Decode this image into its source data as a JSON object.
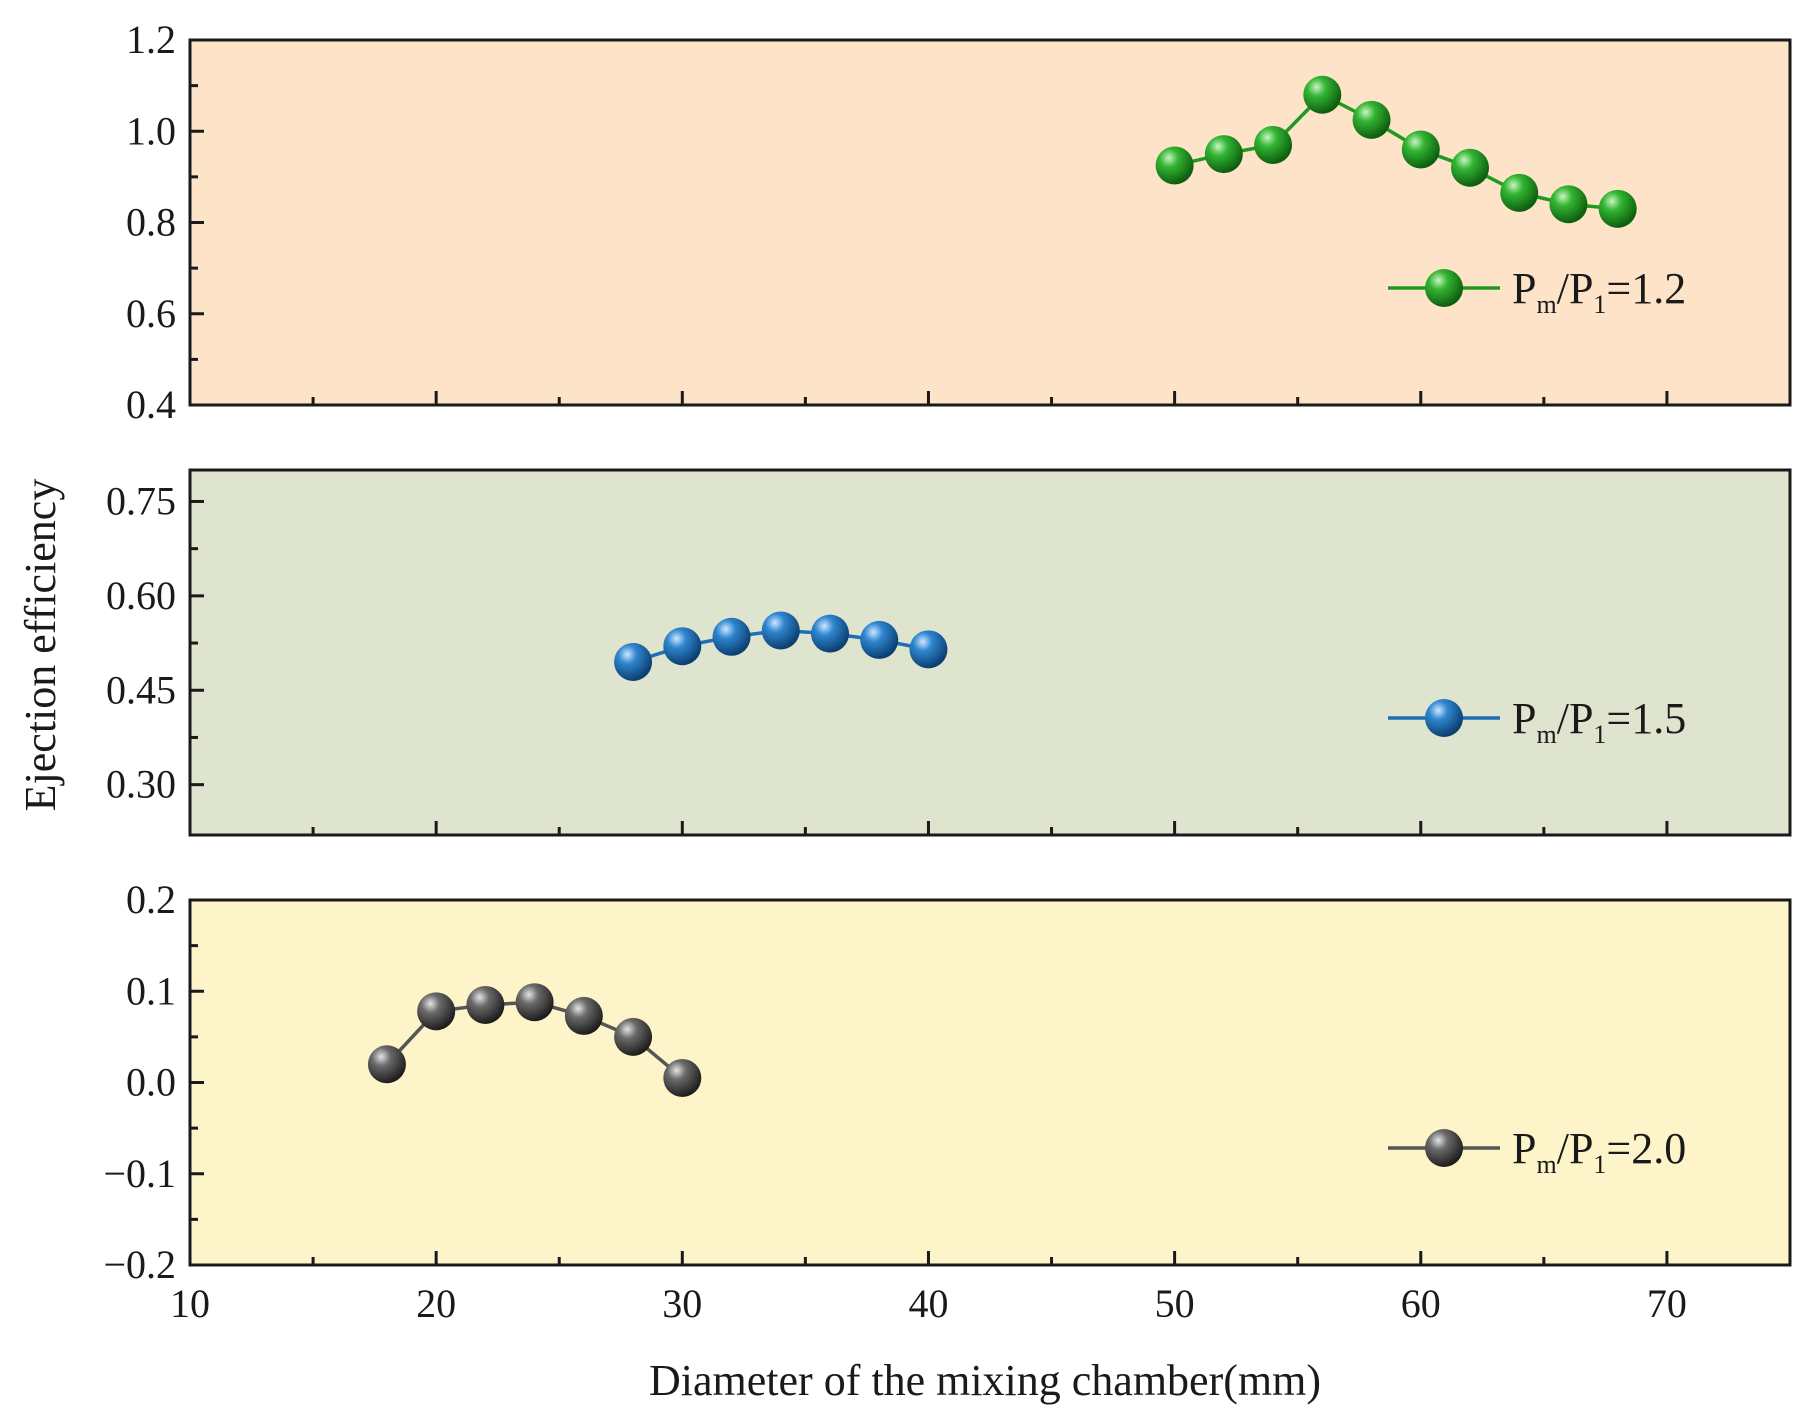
{
  "chart_data": {
    "type": "line",
    "xlabel": "Diameter of the mixing chamber(mm)",
    "ylabel": "Ejection efficiency",
    "xlim": [
      10,
      75
    ],
    "x_ticks": [
      "10",
      "20",
      "30",
      "40",
      "50",
      "60",
      "70"
    ],
    "x_minor_step": 5,
    "panels": [
      {
        "background": "#fde3c8",
        "ylim": [
          0.4,
          1.2
        ],
        "y_ticks": [
          "0.4",
          "0.6",
          "0.8",
          "1.0",
          "1.2"
        ],
        "y_tick_values": [
          0.4,
          0.6,
          0.8,
          1.0,
          1.2
        ],
        "legend_position": "right",
        "series": {
          "name": "Pm/P1=1.2",
          "legend": {
            "p": "P",
            "m": "m",
            "slash": "/P",
            "one": "1",
            "rest": "=1.2"
          },
          "color": "#1f9a1f",
          "x": [
            50,
            52,
            54,
            56,
            58,
            60,
            62,
            64,
            66,
            68
          ],
          "y": [
            0.925,
            0.95,
            0.97,
            1.08,
            1.025,
            0.96,
            0.92,
            0.865,
            0.84,
            0.83
          ]
        }
      },
      {
        "background": "#dfe4cf",
        "ylim": [
          0.22,
          0.8
        ],
        "y_ticks": [
          "0.30",
          "0.45",
          "0.60",
          "0.75"
        ],
        "y_tick_values": [
          0.3,
          0.45,
          0.6,
          0.75
        ],
        "legend_position": "right",
        "series": {
          "name": "Pm/P1=1.5",
          "legend": {
            "p": "P",
            "m": "m",
            "slash": "/P",
            "one": "1",
            "rest": "=1.5"
          },
          "color": "#1f6fb5",
          "x": [
            28,
            30,
            32,
            34,
            36,
            38,
            40
          ],
          "y": [
            0.495,
            0.52,
            0.535,
            0.545,
            0.54,
            0.53,
            0.515
          ]
        }
      },
      {
        "background": "#fdf5c9",
        "ylim": [
          -0.2,
          0.2
        ],
        "y_ticks": [
          "−0.2",
          "−0.1",
          "0.0",
          "0.1",
          "0.2"
        ],
        "y_tick_values": [
          -0.2,
          -0.1,
          0.0,
          0.1,
          0.2
        ],
        "legend_position": "right",
        "series": {
          "name": "Pm/P1=2.0",
          "legend": {
            "p": "P",
            "m": "m",
            "slash": "/P",
            "one": "1",
            "rest": "=2.0"
          },
          "color": "#555555",
          "x": [
            18,
            20,
            22,
            24,
            26,
            28,
            30
          ],
          "y": [
            0.02,
            0.078,
            0.085,
            0.088,
            0.073,
            0.05,
            0.005
          ]
        }
      }
    ]
  }
}
